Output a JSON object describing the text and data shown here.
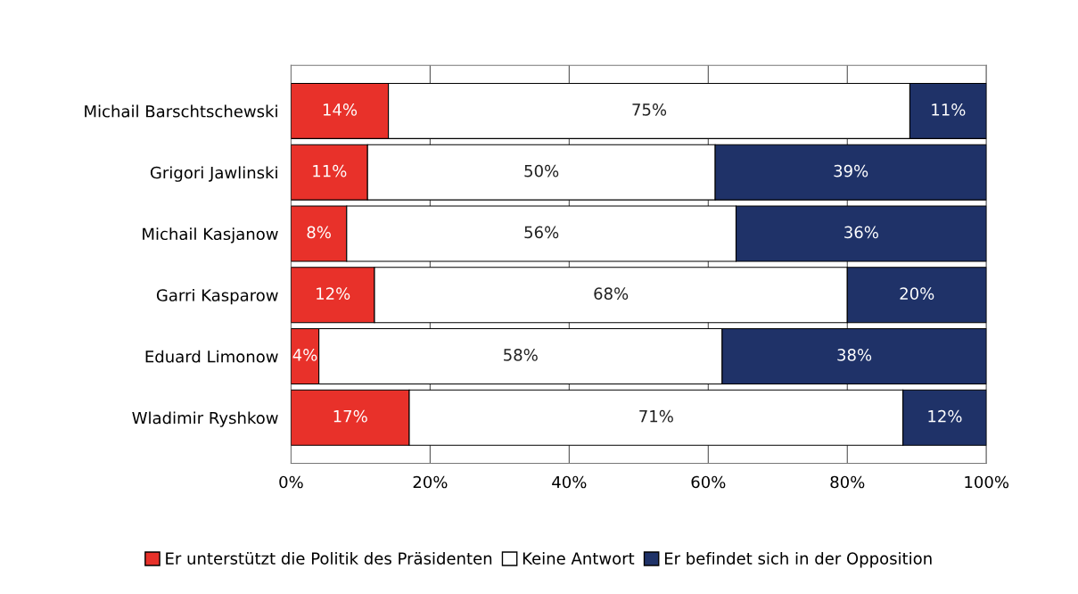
{
  "chart_data": {
    "type": "bar",
    "orientation": "horizontal",
    "stacked": true,
    "categories": [
      "Michail Barschtschewski",
      "Grigori Jawlinski",
      "Michail Kasjanow",
      "Garri Kasparow",
      "Eduard Limonow",
      "Wladimir Ryshkow"
    ],
    "series": [
      {
        "name": "Er unterstützt die Politik des Präsidenten",
        "color": "#e8312a",
        "values": [
          14,
          11,
          8,
          12,
          4,
          17
        ],
        "value_labels": [
          "14%",
          "11%",
          "8%",
          "12%",
          "4%",
          "17%"
        ]
      },
      {
        "name": "Keine Antwort",
        "color": "#ffffff",
        "values": [
          75,
          50,
          56,
          68,
          58,
          71
        ],
        "value_labels": [
          "75%",
          "50%",
          "56%",
          "68%",
          "58%",
          "71%"
        ]
      },
      {
        "name": "Er befindet sich in der Opposition",
        "color": "#1f3268",
        "values": [
          11,
          39,
          36,
          20,
          38,
          12
        ],
        "value_labels": [
          "11%",
          "39%",
          "36%",
          "20%",
          "38%",
          "12%"
        ]
      }
    ],
    "xlim": [
      0,
      100
    ],
    "xticks": [
      {
        "value": 0,
        "label": "0%"
      },
      {
        "value": 20,
        "label": "20%"
      },
      {
        "value": 40,
        "label": "40%"
      },
      {
        "value": 60,
        "label": "60%"
      },
      {
        "value": 80,
        "label": "80%"
      },
      {
        "value": 100,
        "label": "100%"
      }
    ],
    "grid": "x",
    "legend": "bottom"
  }
}
